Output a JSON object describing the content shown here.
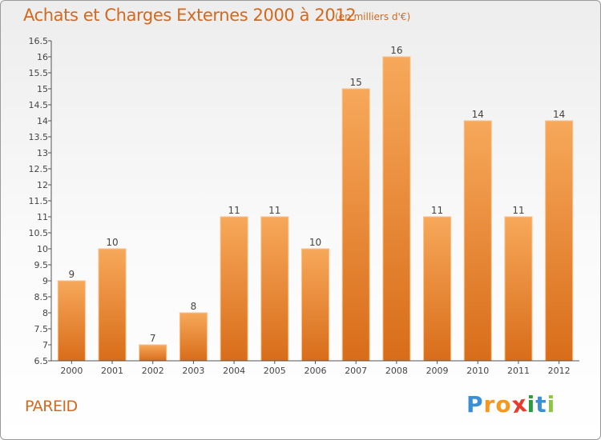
{
  "title": "Achats et Charges Externes 2000 à 2012",
  "unit": "(en milliers d'€)",
  "commune": "PAREID",
  "logo": {
    "letters": [
      "P",
      "r",
      "o",
      "x",
      "i",
      "t",
      "i"
    ],
    "colors": [
      "#3a8fd6",
      "#f39a1e",
      "#f39a1e",
      "#e63c2e",
      "#2a9d3e",
      "#3a8fd6",
      "#8dc63f"
    ]
  },
  "colors": {
    "bar_top": "#f7a85a",
    "bar_bottom": "#d86d1a",
    "bar_edge": "#f9c087",
    "accent": "#d2691e"
  },
  "chart_data": {
    "type": "bar",
    "title": "Achats et Charges Externes 2000 à 2012",
    "xlabel": "",
    "ylabel": "",
    "categories": [
      "2000",
      "2001",
      "2002",
      "2003",
      "2004",
      "2005",
      "2006",
      "2007",
      "2008",
      "2009",
      "2010",
      "2011",
      "2012"
    ],
    "values": [
      9,
      10,
      7,
      8,
      11,
      11,
      10,
      15,
      16,
      11,
      14,
      11,
      14
    ],
    "data_labels": [
      "9",
      "10",
      "7",
      "8",
      "11",
      "11",
      "10",
      "15",
      "16",
      "11",
      "14",
      "11",
      "14"
    ],
    "ylim": [
      6.5,
      16.5
    ],
    "yticks": [
      6.5,
      7,
      7.5,
      8,
      8.5,
      9,
      9.5,
      10,
      10.5,
      11,
      11.5,
      12,
      12.5,
      13,
      13.5,
      14,
      14.5,
      15,
      15.5,
      16,
      16.5
    ],
    "ytick_labels": [
      "6.5",
      "7",
      "7.5",
      "8",
      "8.5",
      "9",
      "9.5",
      "10",
      "10.5",
      "11",
      "11.5",
      "12",
      "12.5",
      "13",
      "13.5",
      "14",
      "14.5",
      "15",
      "15.5",
      "16",
      "16.5"
    ],
    "grid": false,
    "legend": "none"
  }
}
